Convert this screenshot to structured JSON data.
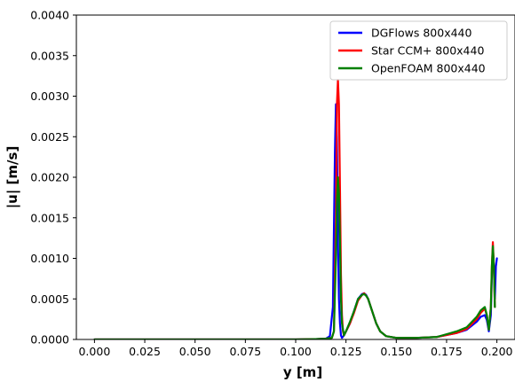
{
  "chart_data": {
    "type": "line",
    "xlabel": "y [m]",
    "ylabel": "|u| [m/s]",
    "xlim": [
      -0.009,
      0.209
    ],
    "ylim": [
      0.0,
      0.004
    ],
    "x_ticks": [
      "0.000",
      "0.025",
      "0.050",
      "0.075",
      "0.100",
      "0.125",
      "0.150",
      "0.175",
      "0.200"
    ],
    "y_ticks": [
      "0.0000",
      "0.0005",
      "0.0010",
      "0.0015",
      "0.0020",
      "0.0025",
      "0.0030",
      "0.0035",
      "0.0040"
    ],
    "x_tick_values": [
      0.0,
      0.025,
      0.05,
      0.075,
      0.1,
      0.125,
      0.15,
      0.175,
      0.2
    ],
    "y_tick_values": [
      0.0,
      0.0005,
      0.001,
      0.0015,
      0.002,
      0.0025,
      0.003,
      0.0035,
      0.004
    ],
    "grid": false,
    "legend_position": "top-right",
    "series": [
      {
        "name": "DGFlows 800x440",
        "color": "#0000ff",
        "x": [
          0.0,
          0.05,
          0.1,
          0.11,
          0.115,
          0.117,
          0.1185,
          0.1195,
          0.12,
          0.1205,
          0.121,
          0.1215,
          0.122,
          0.1225,
          0.123,
          0.124,
          0.125,
          0.127,
          0.129,
          0.131,
          0.133,
          0.134,
          0.135,
          0.136,
          0.138,
          0.14,
          0.142,
          0.145,
          0.15,
          0.16,
          0.17,
          0.18,
          0.185,
          0.19,
          0.192,
          0.194,
          0.195,
          0.196,
          0.197,
          0.1975,
          0.198,
          0.1985,
          0.199,
          0.1995,
          0.2
        ],
        "y": [
          0.0,
          0.0,
          0.0,
          5e-06,
          1e-05,
          4e-05,
          0.0004,
          0.0023,
          0.0029,
          0.0025,
          0.0012,
          0.0005,
          0.0002,
          5e-05,
          2e-05,
          5e-05,
          0.0001,
          0.0002,
          0.00035,
          0.0005,
          0.00056,
          0.00057,
          0.00055,
          0.0005,
          0.00035,
          0.0002,
          0.0001,
          4e-05,
          2e-05,
          2e-05,
          3e-05,
          8e-05,
          0.00012,
          0.00022,
          0.00028,
          0.0003,
          0.00024,
          0.0001,
          0.0003,
          0.0008,
          0.0011,
          0.0009,
          0.0005,
          0.0009,
          0.001
        ]
      },
      {
        "name": "Star CCM+ 800x440",
        "color": "#ff0000",
        "x": [
          0.0,
          0.05,
          0.1,
          0.11,
          0.115,
          0.118,
          0.119,
          0.12,
          0.1205,
          0.121,
          0.1215,
          0.122,
          0.1225,
          0.123,
          0.1235,
          0.124,
          0.125,
          0.127,
          0.129,
          0.131,
          0.133,
          0.134,
          0.135,
          0.136,
          0.138,
          0.14,
          0.142,
          0.145,
          0.15,
          0.16,
          0.17,
          0.18,
          0.185,
          0.19,
          0.192,
          0.194,
          0.195,
          0.196,
          0.197,
          0.1975,
          0.198,
          0.1985,
          0.199
        ],
        "y": [
          0.0,
          0.0,
          0.0,
          5e-06,
          1e-05,
          2e-05,
          0.0001,
          0.0015,
          0.0029,
          0.0032,
          0.0029,
          0.0019,
          0.0008,
          0.0003,
          0.0001,
          5e-05,
          0.0001,
          0.0002,
          0.00033,
          0.00048,
          0.00055,
          0.00057,
          0.00054,
          0.0005,
          0.00035,
          0.0002,
          0.0001,
          4e-05,
          2e-05,
          2e-05,
          3e-05,
          8e-05,
          0.00013,
          0.00025,
          0.00033,
          0.00038,
          0.0003,
          0.00012,
          0.0004,
          0.0009,
          0.0012,
          0.0009,
          0.0004
        ]
      },
      {
        "name": "OpenFOAM 800x440",
        "color": "#008000",
        "x": [
          0.0,
          0.05,
          0.1,
          0.11,
          0.115,
          0.118,
          0.119,
          0.12,
          0.1205,
          0.121,
          0.1215,
          0.122,
          0.1225,
          0.123,
          0.124,
          0.125,
          0.127,
          0.129,
          0.131,
          0.133,
          0.134,
          0.135,
          0.136,
          0.138,
          0.14,
          0.142,
          0.145,
          0.15,
          0.16,
          0.17,
          0.18,
          0.185,
          0.19,
          0.192,
          0.194,
          0.195,
          0.196,
          0.197,
          0.1975,
          0.198,
          0.1985,
          0.199
        ],
        "y": [
          0.0,
          0.0,
          0.0,
          5e-06,
          1e-05,
          2e-05,
          0.0001,
          0.001,
          0.0017,
          0.002,
          0.0018,
          0.0012,
          0.0005,
          0.0002,
          5e-05,
          0.0001,
          0.00022,
          0.00035,
          0.0005,
          0.00055,
          0.00056,
          0.00054,
          0.0005,
          0.00035,
          0.0002,
          0.0001,
          4e-05,
          2e-05,
          2e-05,
          3e-05,
          0.0001,
          0.00015,
          0.00028,
          0.00036,
          0.0004,
          0.0003,
          0.00012,
          0.0004,
          0.0009,
          0.00115,
          0.0009,
          0.0004
        ]
      }
    ]
  }
}
